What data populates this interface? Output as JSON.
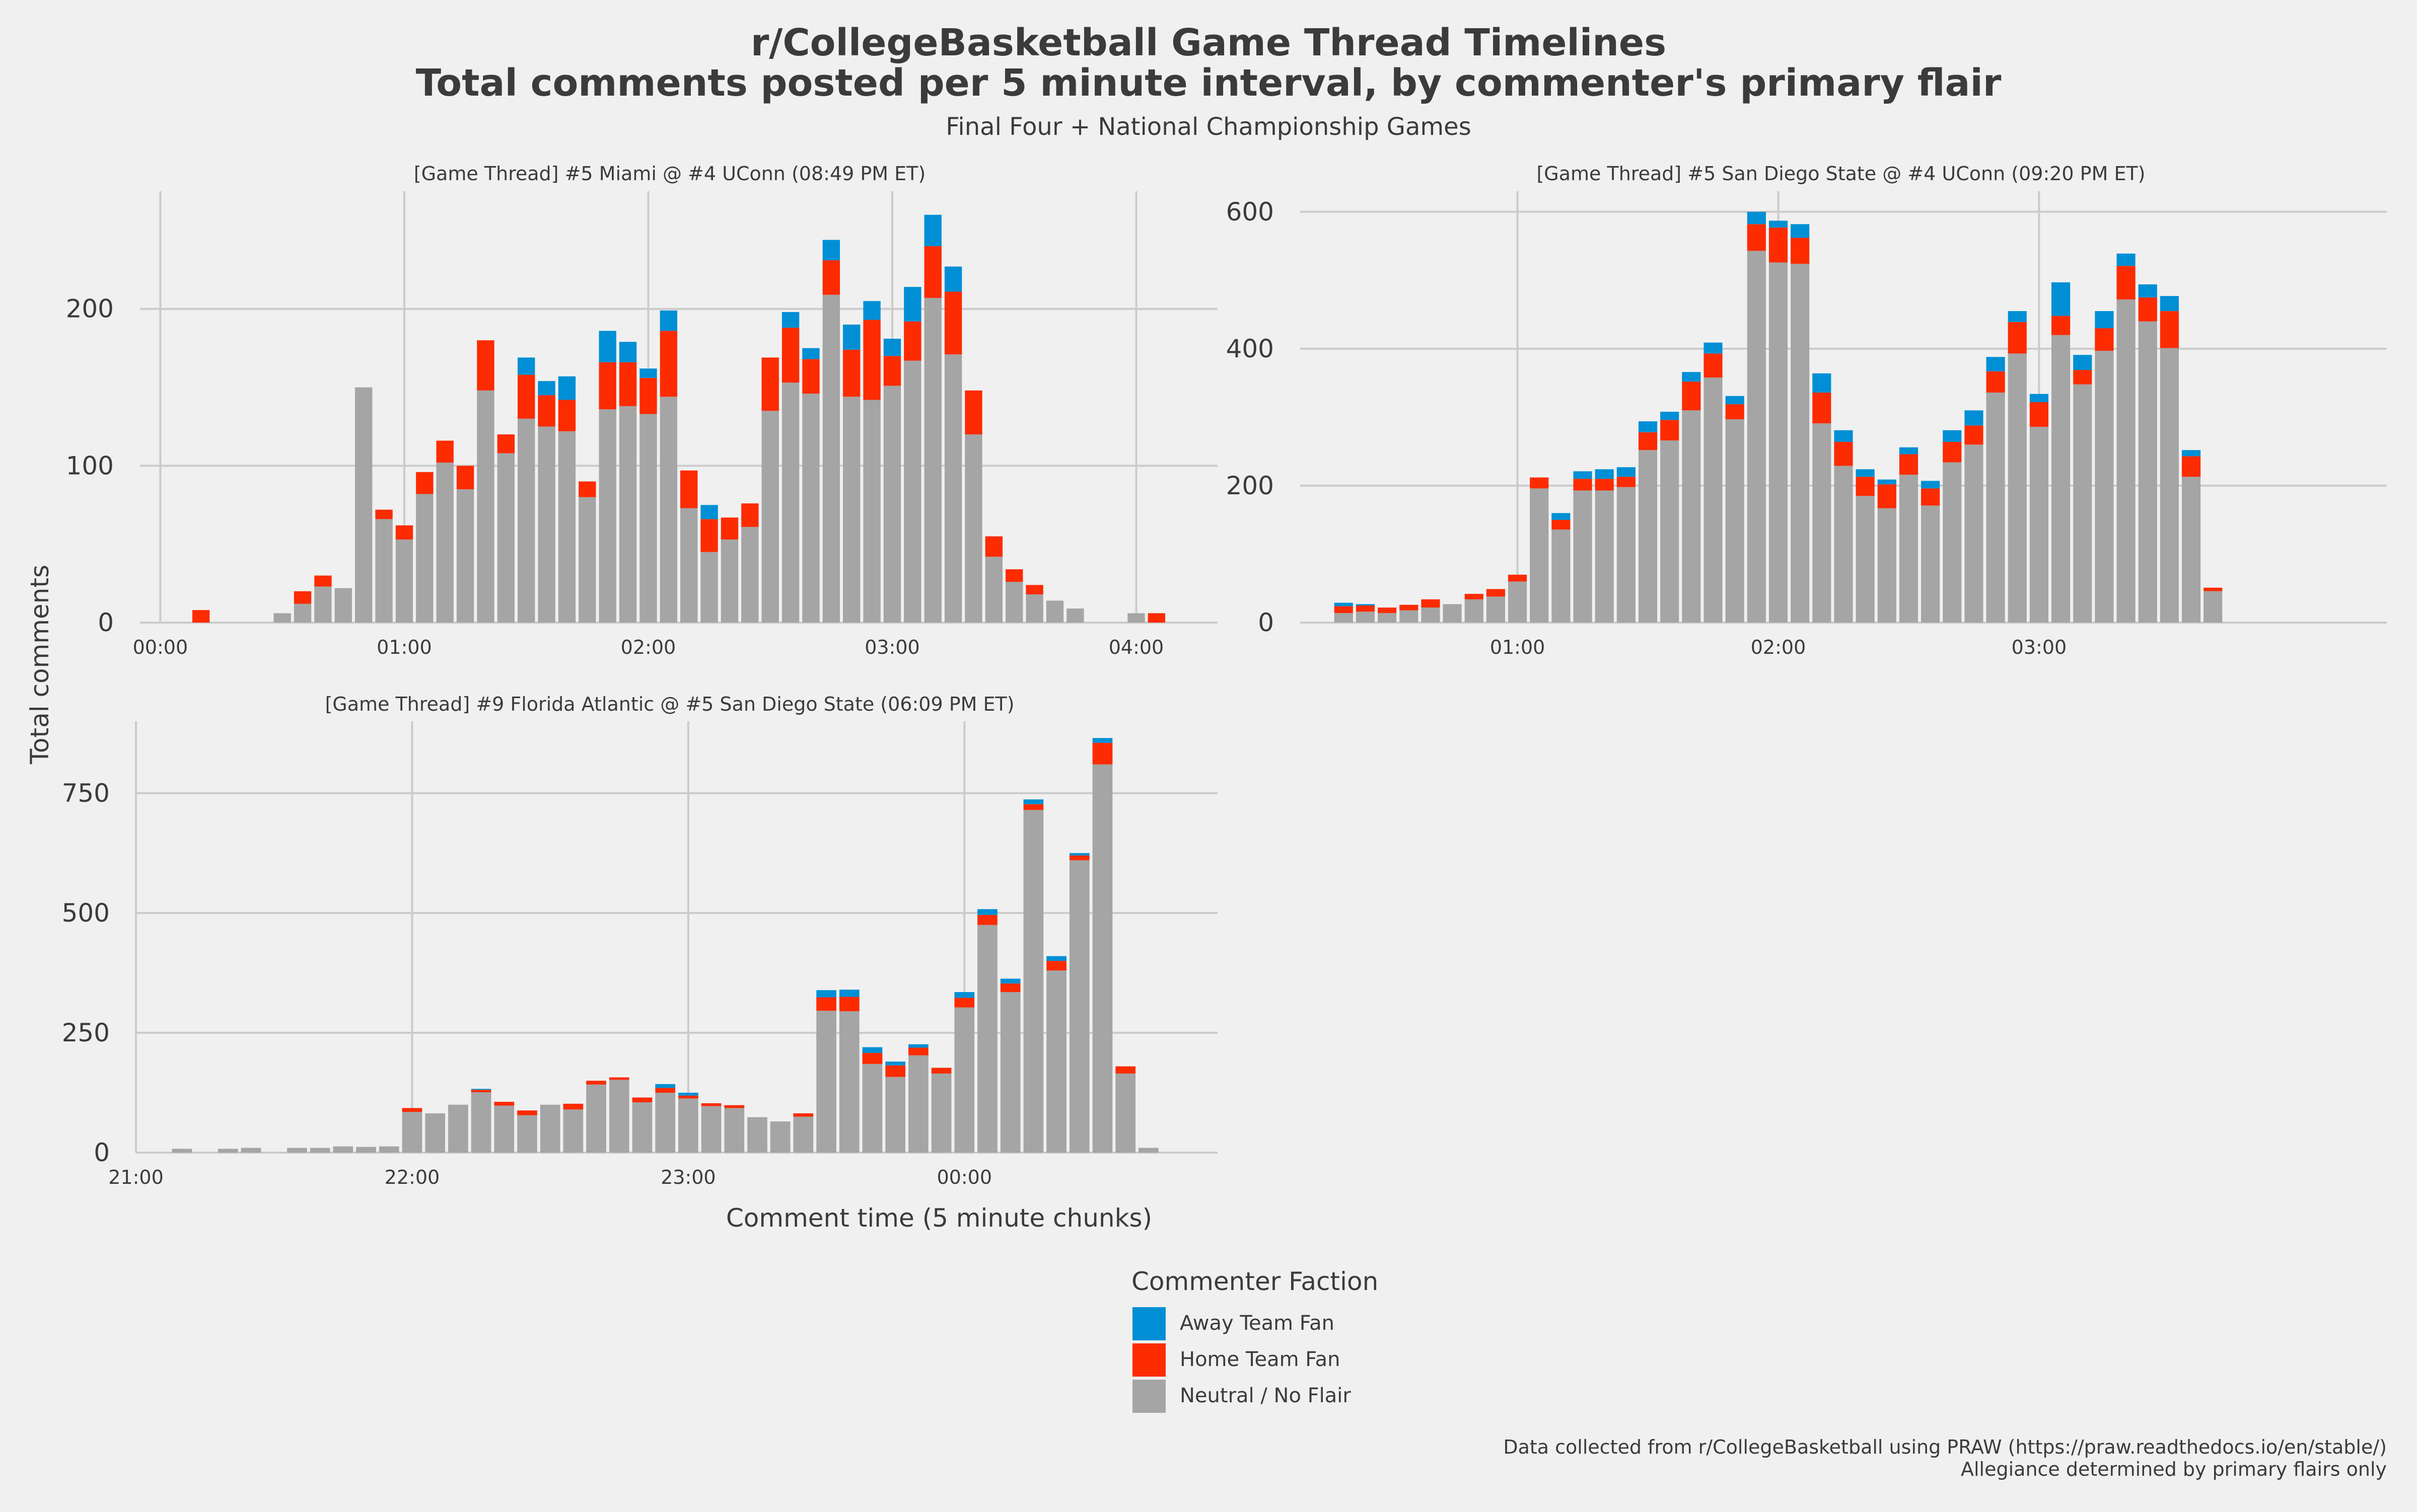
{
  "title_line1": "r/CollegeBasketball Game Thread Timelines",
  "title_line2": "Total comments posted per 5 minute interval, by commenter's primary flair",
  "subtitle": "Final Four + National Championship Games",
  "ylabel": "Total comments",
  "xlabel": "Comment time (5 minute chunks)",
  "legend": {
    "title": "Commenter Faction",
    "items": [
      {
        "label": "Away Team Fan",
        "color": "#008fd5"
      },
      {
        "label": "Home Team Fan",
        "color": "#fc2b00"
      },
      {
        "label": "Neutral / No Flair",
        "color": "#a5a5a5"
      }
    ]
  },
  "footer_line1": "Data collected from r/CollegeBasketball using PRAW (https://praw.readthedocs.io/en/stable/)",
  "footer_line2": "Allegiance determined by primary flairs only",
  "colors": {
    "background": "#f0f0f0",
    "grid": "#cbcbcb",
    "away": "#008fd5",
    "home": "#fc2b00",
    "neutral": "#a5a5a5"
  },
  "chart_data": [
    {
      "type": "bar",
      "stacked": true,
      "title": "[Game Thread] #5 Miami @ #4 UConn (08:49 PM ET)",
      "xlim_minutes": [
        -5,
        260
      ],
      "ylim": [
        0,
        275
      ],
      "yticks": [
        0,
        100,
        200
      ],
      "xticks": [
        {
          "m": 0,
          "label": "00:00"
        },
        {
          "m": 60,
          "label": "01:00"
        },
        {
          "m": 120,
          "label": "02:00"
        },
        {
          "m": 180,
          "label": "03:00"
        },
        {
          "m": 240,
          "label": "04:00"
        }
      ],
      "bar_minutes": 5,
      "series_order": [
        "neutral",
        "home",
        "away"
      ],
      "bars": [
        {
          "t": 10,
          "n": 0,
          "h": 8,
          "a": 0
        },
        {
          "t": 30,
          "n": 6,
          "h": 0,
          "a": 0
        },
        {
          "t": 35,
          "n": 12,
          "h": 8,
          "a": 0
        },
        {
          "t": 40,
          "n": 23,
          "h": 7,
          "a": 0
        },
        {
          "t": 45,
          "n": 22,
          "h": 0,
          "a": 0
        },
        {
          "t": 50,
          "n": 150,
          "h": 0,
          "a": 0
        },
        {
          "t": 55,
          "n": 66,
          "h": 6,
          "a": 0
        },
        {
          "t": 60,
          "n": 53,
          "h": 9,
          "a": 0
        },
        {
          "t": 65,
          "n": 82,
          "h": 14,
          "a": 0
        },
        {
          "t": 70,
          "n": 102,
          "h": 14,
          "a": 0
        },
        {
          "t": 75,
          "n": 85,
          "h": 15,
          "a": 0
        },
        {
          "t": 80,
          "n": 148,
          "h": 32,
          "a": 0
        },
        {
          "t": 85,
          "n": 108,
          "h": 12,
          "a": 0
        },
        {
          "t": 90,
          "n": 130,
          "h": 28,
          "a": 11
        },
        {
          "t": 95,
          "n": 125,
          "h": 20,
          "a": 9
        },
        {
          "t": 100,
          "n": 122,
          "h": 20,
          "a": 15
        },
        {
          "t": 105,
          "n": 80,
          "h": 10,
          "a": 0
        },
        {
          "t": 110,
          "n": 136,
          "h": 30,
          "a": 20
        },
        {
          "t": 115,
          "n": 138,
          "h": 28,
          "a": 13
        },
        {
          "t": 120,
          "n": 133,
          "h": 23,
          "a": 6
        },
        {
          "t": 125,
          "n": 144,
          "h": 42,
          "a": 13
        },
        {
          "t": 130,
          "n": 73,
          "h": 24,
          "a": 0
        },
        {
          "t": 135,
          "n": 45,
          "h": 21,
          "a": 9
        },
        {
          "t": 140,
          "n": 53,
          "h": 14,
          "a": 0
        },
        {
          "t": 145,
          "n": 61,
          "h": 15,
          "a": 0
        },
        {
          "t": 150,
          "n": 135,
          "h": 34,
          "a": 0
        },
        {
          "t": 155,
          "n": 153,
          "h": 35,
          "a": 10
        },
        {
          "t": 160,
          "n": 146,
          "h": 22,
          "a": 7
        },
        {
          "t": 165,
          "n": 209,
          "h": 22,
          "a": 13
        },
        {
          "t": 170,
          "n": 144,
          "h": 30,
          "a": 16
        },
        {
          "t": 175,
          "n": 142,
          "h": 51,
          "a": 12
        },
        {
          "t": 180,
          "n": 151,
          "h": 19,
          "a": 11
        },
        {
          "t": 185,
          "n": 167,
          "h": 25,
          "a": 22
        },
        {
          "t": 190,
          "n": 207,
          "h": 33,
          "a": 20
        },
        {
          "t": 195,
          "n": 171,
          "h": 40,
          "a": 16
        },
        {
          "t": 200,
          "n": 120,
          "h": 28,
          "a": 0
        },
        {
          "t": 205,
          "n": 42,
          "h": 13,
          "a": 0
        },
        {
          "t": 210,
          "n": 26,
          "h": 8,
          "a": 0
        },
        {
          "t": 215,
          "n": 18,
          "h": 6,
          "a": 0
        },
        {
          "t": 220,
          "n": 14,
          "h": 0,
          "a": 0
        },
        {
          "t": 225,
          "n": 9,
          "h": 0,
          "a": 0
        },
        {
          "t": 240,
          "n": 6,
          "h": 0,
          "a": 0
        },
        {
          "t": 245,
          "n": 0,
          "h": 6,
          "a": 0
        }
      ]
    },
    {
      "type": "bar",
      "stacked": true,
      "title": "[Game Thread] #5 San Diego State @ #4 UConn (09:20 PM ET)",
      "xlim_minutes": [
        10,
        260
      ],
      "ylim": [
        0,
        630
      ],
      "yticks": [
        0,
        200,
        400,
        600
      ],
      "xticks": [
        {
          "m": 60,
          "label": "01:00"
        },
        {
          "m": 120,
          "label": "02:00"
        },
        {
          "m": 180,
          "label": "03:00"
        }
      ],
      "bar_minutes": 5,
      "series_order": [
        "neutral",
        "home",
        "away"
      ],
      "bars": [
        {
          "t": 20,
          "n": 14,
          "h": 10,
          "a": 5
        },
        {
          "t": 25,
          "n": 16,
          "h": 9,
          "a": 2
        },
        {
          "t": 30,
          "n": 14,
          "h": 8,
          "a": 0
        },
        {
          "t": 35,
          "n": 18,
          "h": 8,
          "a": 0
        },
        {
          "t": 40,
          "n": 22,
          "h": 12,
          "a": 0
        },
        {
          "t": 45,
          "n": 27,
          "h": 0,
          "a": 0
        },
        {
          "t": 50,
          "n": 34,
          "h": 8,
          "a": 0
        },
        {
          "t": 55,
          "n": 38,
          "h": 11,
          "a": 0
        },
        {
          "t": 60,
          "n": 60,
          "h": 10,
          "a": 0
        },
        {
          "t": 65,
          "n": 196,
          "h": 16,
          "a": 0
        },
        {
          "t": 70,
          "n": 136,
          "h": 14,
          "a": 10
        },
        {
          "t": 75,
          "n": 193,
          "h": 17,
          "a": 11
        },
        {
          "t": 80,
          "n": 193,
          "h": 17,
          "a": 14
        },
        {
          "t": 85,
          "n": 198,
          "h": 15,
          "a": 14
        },
        {
          "t": 90,
          "n": 252,
          "h": 26,
          "a": 16
        },
        {
          "t": 95,
          "n": 266,
          "h": 30,
          "a": 12
        },
        {
          "t": 100,
          "n": 310,
          "h": 42,
          "a": 14
        },
        {
          "t": 105,
          "n": 358,
          "h": 35,
          "a": 16
        },
        {
          "t": 110,
          "n": 297,
          "h": 22,
          "a": 12
        },
        {
          "t": 115,
          "n": 543,
          "h": 39,
          "a": 18
        },
        {
          "t": 120,
          "n": 526,
          "h": 51,
          "a": 10
        },
        {
          "t": 125,
          "n": 524,
          "h": 38,
          "a": 20
        },
        {
          "t": 130,
          "n": 291,
          "h": 45,
          "a": 28
        },
        {
          "t": 135,
          "n": 229,
          "h": 35,
          "a": 17
        },
        {
          "t": 140,
          "n": 185,
          "h": 28,
          "a": 11
        },
        {
          "t": 145,
          "n": 167,
          "h": 35,
          "a": 7
        },
        {
          "t": 150,
          "n": 216,
          "h": 30,
          "a": 10
        },
        {
          "t": 155,
          "n": 171,
          "h": 25,
          "a": 11
        },
        {
          "t": 160,
          "n": 234,
          "h": 30,
          "a": 17
        },
        {
          "t": 165,
          "n": 260,
          "h": 28,
          "a": 22
        },
        {
          "t": 170,
          "n": 336,
          "h": 31,
          "a": 21
        },
        {
          "t": 175,
          "n": 393,
          "h": 46,
          "a": 16
        },
        {
          "t": 180,
          "n": 286,
          "h": 36,
          "a": 12
        },
        {
          "t": 185,
          "n": 420,
          "h": 28,
          "a": 49
        },
        {
          "t": 190,
          "n": 348,
          "h": 21,
          "a": 22
        },
        {
          "t": 195,
          "n": 397,
          "h": 33,
          "a": 25
        },
        {
          "t": 200,
          "n": 472,
          "h": 49,
          "a": 18
        },
        {
          "t": 205,
          "n": 440,
          "h": 35,
          "a": 19
        },
        {
          "t": 210,
          "n": 401,
          "h": 54,
          "a": 22
        },
        {
          "t": 215,
          "n": 213,
          "h": 30,
          "a": 9
        },
        {
          "t": 220,
          "n": 46,
          "h": 5,
          "a": 0
        }
      ]
    },
    {
      "type": "bar",
      "stacked": true,
      "title": "[Game Thread] #9 Florida Atlantic @ #5 San Diego State (06:09 PM ET)",
      "xlim_minutes": [
        1260,
        1495
      ],
      "ylim": [
        0,
        900
      ],
      "yticks": [
        0,
        250,
        500,
        750
      ],
      "xticks": [
        {
          "m": 1260,
          "label": "21:00"
        },
        {
          "m": 1320,
          "label": "22:00"
        },
        {
          "m": 1380,
          "label": "23:00"
        },
        {
          "m": 1440,
          "label": "00:00"
        }
      ],
      "bar_minutes": 5,
      "series_order": [
        "neutral",
        "home",
        "away"
      ],
      "bars": [
        {
          "t": 1270,
          "n": 8,
          "h": 0,
          "a": 0
        },
        {
          "t": 1280,
          "n": 8,
          "h": 0,
          "a": 0
        },
        {
          "t": 1285,
          "n": 10,
          "h": 0,
          "a": 0
        },
        {
          "t": 1295,
          "n": 10,
          "h": 0,
          "a": 0
        },
        {
          "t": 1300,
          "n": 10,
          "h": 0,
          "a": 0
        },
        {
          "t": 1305,
          "n": 13,
          "h": 0,
          "a": 0
        },
        {
          "t": 1310,
          "n": 12,
          "h": 0,
          "a": 0
        },
        {
          "t": 1315,
          "n": 13,
          "h": 0,
          "a": 0
        },
        {
          "t": 1320,
          "n": 85,
          "h": 8,
          "a": 0
        },
        {
          "t": 1325,
          "n": 82,
          "h": 0,
          "a": 0
        },
        {
          "t": 1330,
          "n": 100,
          "h": 0,
          "a": 0
        },
        {
          "t": 1335,
          "n": 126,
          "h": 5,
          "a": 2
        },
        {
          "t": 1340,
          "n": 98,
          "h": 8,
          "a": 0
        },
        {
          "t": 1345,
          "n": 78,
          "h": 10,
          "a": 0
        },
        {
          "t": 1350,
          "n": 100,
          "h": 0,
          "a": 0
        },
        {
          "t": 1355,
          "n": 90,
          "h": 12,
          "a": 0
        },
        {
          "t": 1360,
          "n": 142,
          "h": 8,
          "a": 0
        },
        {
          "t": 1365,
          "n": 152,
          "h": 5,
          "a": 0
        },
        {
          "t": 1370,
          "n": 105,
          "h": 10,
          "a": 0
        },
        {
          "t": 1375,
          "n": 125,
          "h": 10,
          "a": 8
        },
        {
          "t": 1380,
          "n": 113,
          "h": 6,
          "a": 6
        },
        {
          "t": 1385,
          "n": 97,
          "h": 6,
          "a": 0
        },
        {
          "t": 1390,
          "n": 93,
          "h": 6,
          "a": 0
        },
        {
          "t": 1395,
          "n": 74,
          "h": 0,
          "a": 0
        },
        {
          "t": 1400,
          "n": 65,
          "h": 0,
          "a": 0
        },
        {
          "t": 1405,
          "n": 75,
          "h": 7,
          "a": 0
        },
        {
          "t": 1410,
          "n": 296,
          "h": 28,
          "a": 15
        },
        {
          "t": 1415,
          "n": 295,
          "h": 30,
          "a": 15
        },
        {
          "t": 1420,
          "n": 185,
          "h": 23,
          "a": 12
        },
        {
          "t": 1425,
          "n": 158,
          "h": 24,
          "a": 8
        },
        {
          "t": 1430,
          "n": 203,
          "h": 16,
          "a": 7
        },
        {
          "t": 1435,
          "n": 165,
          "h": 12,
          "a": 0
        },
        {
          "t": 1440,
          "n": 303,
          "h": 20,
          "a": 12
        },
        {
          "t": 1445,
          "n": 475,
          "h": 21,
          "a": 12
        },
        {
          "t": 1450,
          "n": 335,
          "h": 18,
          "a": 10
        },
        {
          "t": 1455,
          "n": 715,
          "h": 12,
          "a": 10
        },
        {
          "t": 1460,
          "n": 380,
          "h": 20,
          "a": 10
        },
        {
          "t": 1465,
          "n": 610,
          "h": 10,
          "a": 5
        },
        {
          "t": 1470,
          "n": 810,
          "h": 45,
          "a": 10
        },
        {
          "t": 1475,
          "n": 165,
          "h": 15,
          "a": 0
        },
        {
          "t": 1480,
          "n": 10,
          "h": 0,
          "a": 0
        }
      ]
    }
  ]
}
